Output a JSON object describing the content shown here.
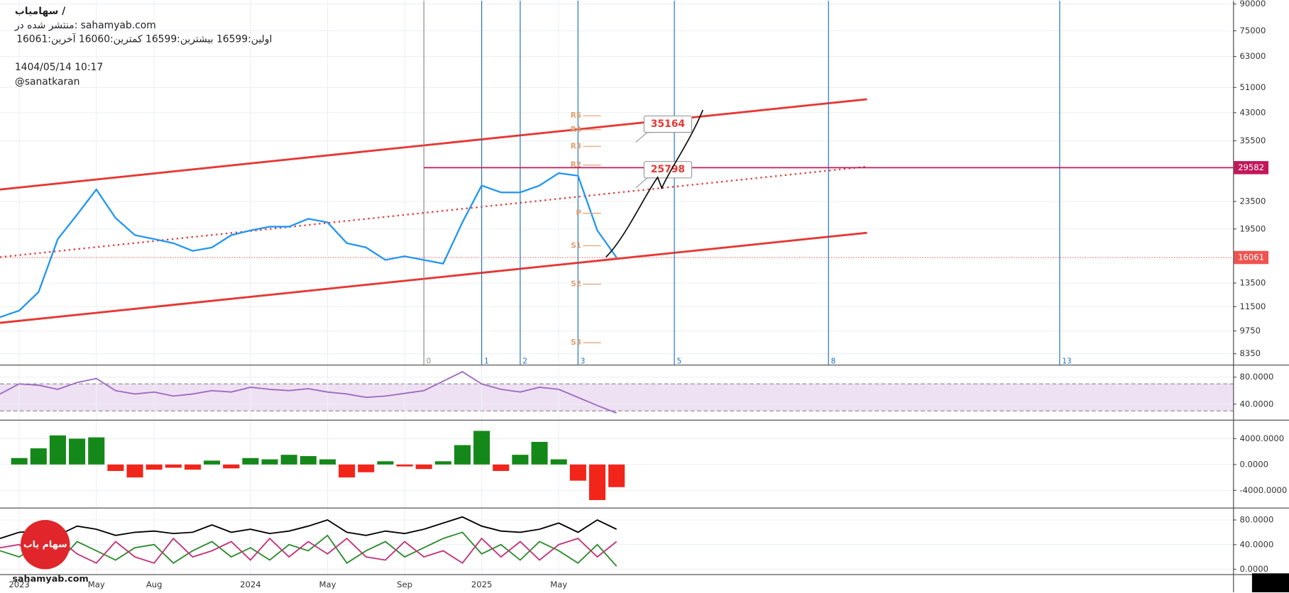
{
  "header": {
    "title": "سهامیاب /",
    "published": "منتشر شده در: sahamyab.com",
    "ohlc": "اولین:16599  بیشترین:16599  کمترین:16060  آخرین:16061",
    "datetime": "1404/05/14 10:17",
    "author": "@sanatkaran"
  },
  "chart_data": [
    {
      "type": "line",
      "log_scale": true,
      "grid": true,
      "x": [
        "2022-12",
        "2023-01",
        "2023-02",
        "2023-03",
        "2023-04",
        "2023-05",
        "2023-06",
        "2023-07",
        "2023-08",
        "2023-09",
        "2023-10",
        "2023-11",
        "2023-12",
        "2024-01",
        "2024-02",
        "2024-03",
        "2024-04",
        "2024-05",
        "2024-06",
        "2024-07",
        "2024-08",
        "2024-09",
        "2024-10",
        "2024-11",
        "2024-12",
        "2025-01",
        "2025-02",
        "2025-03",
        "2025-04",
        "2025-05",
        "2025-06",
        "2025-07",
        "2025-08"
      ],
      "series": [
        {
          "color": "#2196f3",
          "values": [
            10700,
            11200,
            12700,
            18200,
            21500,
            25500,
            21000,
            18700,
            18200,
            17700,
            16800,
            17200,
            18700,
            19300,
            19800,
            19800,
            20900,
            20400,
            17700,
            17200,
            15800,
            16200,
            15800,
            15400,
            20400,
            26200,
            25000,
            25000,
            26200,
            28500,
            28000,
            19300,
            16061
          ]
        }
      ],
      "xlim": [
        "2022-12",
        "2028-04"
      ],
      "ylim": [
        7750,
        92000
      ],
      "yticks": [
        8350,
        9750,
        11500,
        13500,
        19500,
        23500,
        35500,
        43000,
        51000,
        63000,
        75000,
        90000
      ],
      "hline": {
        "value": 29582,
        "from": "2024-10",
        "color": "#c2185b"
      },
      "last_price": {
        "value": 16061,
        "color": "#ef5350"
      },
      "channel": [
        {
          "x": [
            "2022-12",
            "2026-09"
          ],
          "y": [
            25500,
            47100
          ],
          "color": "#e53935",
          "style": "solid"
        },
        {
          "x": [
            "2022-12",
            "2026-09"
          ],
          "y": [
            10300,
            19000
          ],
          "color": "#e53935",
          "style": "solid"
        },
        {
          "x": [
            "2022-12",
            "2026-09"
          ],
          "y": [
            16100,
            29800
          ],
          "color": "#e53935",
          "style": "dotted"
        }
      ],
      "time_zones": {
        "x": [
          "2024-10",
          "2025-01",
          "2025-03",
          "2025-06",
          "2025-11",
          "2026-07",
          "2027-07"
        ],
        "labels": [
          "0",
          "1",
          "2",
          "3",
          "5",
          "8",
          "13"
        ],
        "colors": [
          "#888888",
          "#1e6fc0",
          "#1e6fc0",
          "#1e6fc0",
          "#1e6fc0",
          "#1e6fc0",
          "#1e6fc0"
        ]
      },
      "pivots": {
        "x": "2025-06",
        "labels": [
          "R5",
          "R4",
          "R3",
          "R2",
          "P",
          "S1",
          "S2",
          "S3"
        ],
        "values": [
          42100,
          38300,
          34200,
          30100,
          21700,
          17400,
          13400,
          9000
        ],
        "color": "#e0a070"
      },
      "callouts": [
        {
          "value": 35164,
          "x": "2025-09"
        },
        {
          "value": 25798,
          "x": "2025-09"
        }
      ]
    },
    {
      "type": "line",
      "grid": true,
      "x": [
        "2022-12",
        "2023-01",
        "2023-02",
        "2023-03",
        "2023-04",
        "2023-05",
        "2023-06",
        "2023-07",
        "2023-08",
        "2023-09",
        "2023-10",
        "2023-11",
        "2023-12",
        "2024-01",
        "2024-02",
        "2024-03",
        "2024-04",
        "2024-05",
        "2024-06",
        "2024-07",
        "2024-08",
        "2024-09",
        "2024-10",
        "2024-11",
        "2024-12",
        "2025-01",
        "2025-02",
        "2025-03",
        "2025-04",
        "2025-05",
        "2025-06",
        "2025-07",
        "2025-08"
      ],
      "series": [
        {
          "color": "#9c6bbf",
          "values": [
            55,
            70,
            68,
            62,
            72,
            78,
            60,
            55,
            58,
            52,
            55,
            60,
            58,
            65,
            62,
            60,
            63,
            58,
            55,
            50,
            52,
            56,
            60,
            74,
            88,
            70,
            62,
            58,
            65,
            62,
            50,
            38,
            27
          ]
        }
      ],
      "xlim": [
        "2022-12",
        "2028-04"
      ],
      "ylim": [
        17,
        96
      ],
      "yticks": [
        {
          "value": 40,
          "label": "40.0000"
        },
        {
          "value": 80,
          "label": "80.0000"
        }
      ],
      "band": {
        "values": [
          30,
          70
        ],
        "color": "#efe1f4"
      }
    },
    {
      "type": "bar",
      "grid": true,
      "x": [
        "2022-12",
        "2023-01",
        "2023-02",
        "2023-03",
        "2023-04",
        "2023-05",
        "2023-06",
        "2023-07",
        "2023-08",
        "2023-09",
        "2023-10",
        "2023-11",
        "2023-12",
        "2024-01",
        "2024-02",
        "2024-03",
        "2024-04",
        "2024-05",
        "2024-06",
        "2024-07",
        "2024-08",
        "2024-09",
        "2024-10",
        "2024-11",
        "2024-12",
        "2025-01",
        "2025-02",
        "2025-03",
        "2025-04",
        "2025-05",
        "2025-06",
        "2025-07",
        "2025-08"
      ],
      "values": [
        0,
        1000,
        2500,
        4500,
        4000,
        4200,
        -1000,
        -2000,
        -800,
        -500,
        -800,
        600,
        -600,
        1000,
        800,
        1500,
        1300,
        800,
        -2000,
        -1200,
        500,
        -300,
        -700,
        500,
        3000,
        5200,
        -1000,
        1500,
        3500,
        800,
        -2500,
        -5500,
        -3500
      ],
      "colors": {
        "positive": "#15881a",
        "negative": "#f2251b"
      },
      "xlim": [
        "2022-12",
        "2028-04"
      ],
      "ylim": [
        -6670,
        6670
      ],
      "yticks": [
        {
          "value": -4000,
          "label": "-4000.0000"
        },
        {
          "value": 0,
          "label": "0.0000"
        },
        {
          "value": 4000,
          "label": "4000.0000"
        }
      ]
    },
    {
      "type": "line",
      "grid": true,
      "x": [
        "2022-12",
        "2023-01",
        "2023-02",
        "2023-03",
        "2023-04",
        "2023-05",
        "2023-06",
        "2023-07",
        "2023-08",
        "2023-09",
        "2023-10",
        "2023-11",
        "2023-12",
        "2024-01",
        "2024-02",
        "2024-03",
        "2024-04",
        "2024-05",
        "2024-06",
        "2024-07",
        "2024-08",
        "2024-09",
        "2024-10",
        "2024-11",
        "2024-12",
        "2025-01",
        "2025-02",
        "2025-03",
        "2025-04",
        "2025-05",
        "2025-06",
        "2025-07",
        "2025-08"
      ],
      "series": [
        {
          "color": "#000000",
          "values": [
            50,
            60,
            62,
            55,
            70,
            65,
            55,
            60,
            62,
            58,
            60,
            72,
            60,
            65,
            58,
            62,
            70,
            80,
            60,
            55,
            62,
            58,
            65,
            75,
            85,
            70,
            62,
            60,
            65,
            75,
            60,
            80,
            65
          ]
        },
        {
          "color": "#2e8b2e",
          "values": [
            30,
            20,
            40,
            10,
            45,
            30,
            15,
            35,
            40,
            10,
            30,
            45,
            20,
            35,
            15,
            40,
            30,
            55,
            10,
            30,
            45,
            20,
            35,
            50,
            60,
            25,
            40,
            15,
            45,
            30,
            10,
            40,
            5
          ]
        },
        {
          "color": "#c2337a",
          "values": [
            35,
            40,
            15,
            50,
            25,
            10,
            45,
            20,
            10,
            50,
            20,
            30,
            45,
            15,
            50,
            20,
            45,
            25,
            50,
            20,
            15,
            45,
            20,
            30,
            10,
            50,
            20,
            45,
            15,
            40,
            50,
            20,
            45
          ]
        }
      ],
      "xlim": [
        "2022-12",
        "2028-04"
      ],
      "ylim": [
        -8,
        96
      ],
      "yticks": [
        {
          "value": 0,
          "label": "0.0000"
        },
        {
          "value": 40,
          "label": "40.0000"
        },
        {
          "value": 80,
          "label": "80.0000"
        }
      ],
      "xticks": [
        {
          "value": "2023-01",
          "label": "2023"
        },
        {
          "value": "2023-05",
          "label": "May"
        },
        {
          "value": "2023-08",
          "label": "Aug"
        },
        {
          "value": "2024-01",
          "label": "2024"
        },
        {
          "value": "2024-05",
          "label": "May"
        },
        {
          "value": "2024-09",
          "label": "Sep"
        },
        {
          "value": "2025-01",
          "label": "2025"
        },
        {
          "value": "2025-05",
          "label": "May"
        }
      ]
    }
  ],
  "footer": {
    "logo": "سهام یاب",
    "watermark": "sahamyab.com"
  }
}
